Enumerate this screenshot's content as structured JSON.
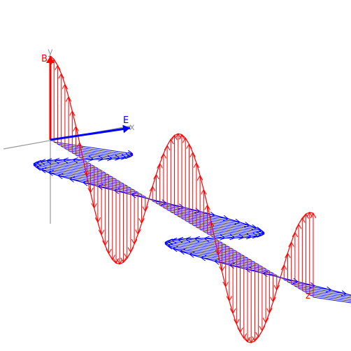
{
  "labels": {
    "b_vector": "B",
    "y_axis": "y",
    "e_vector": "E",
    "x_axis": "x",
    "z_axis": "z"
  },
  "colors": {
    "magnetic": "#ff0000",
    "electric": "#0000ff",
    "axis": "#999999"
  },
  "wave": {
    "wavelengths_shown": 2,
    "vectors_per_wavelength": 36
  }
}
